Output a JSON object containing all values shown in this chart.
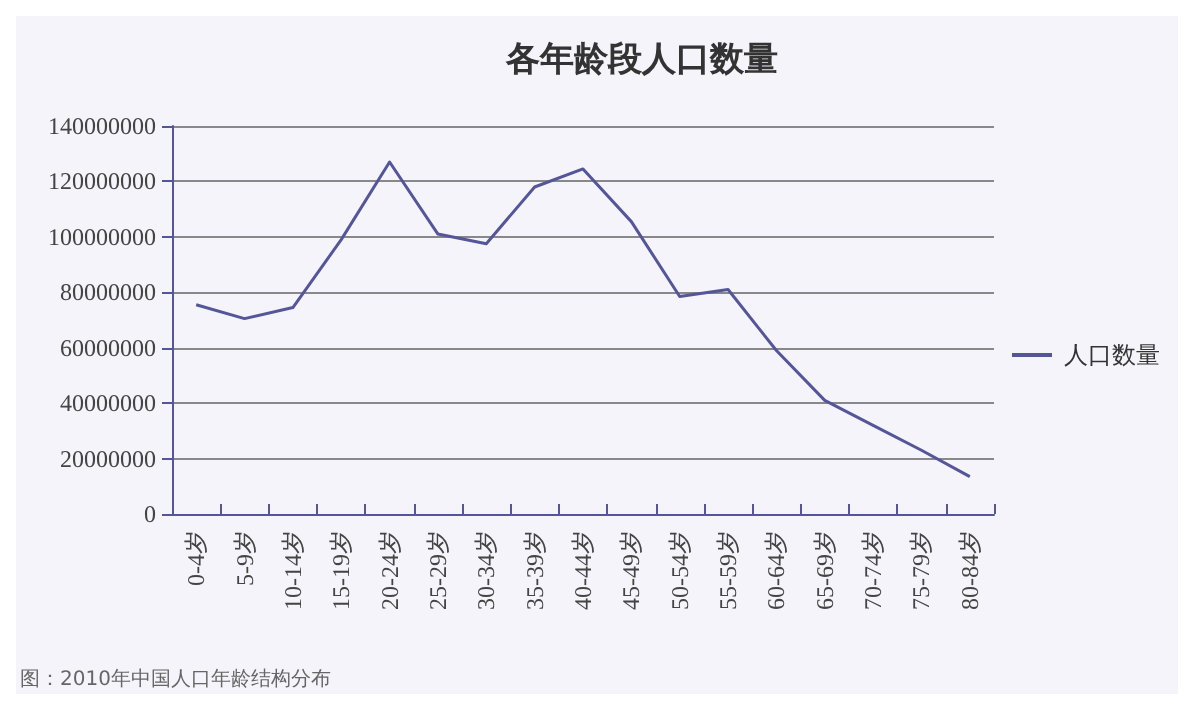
{
  "chart_data": {
    "type": "line",
    "title": "各年龄段人口数量",
    "categories": [
      "0-4岁",
      "5-9岁",
      "10-14岁",
      "15-19岁",
      "20-24岁",
      "25-29岁",
      "30-34岁",
      "35-39岁",
      "40-44岁",
      "45-49岁",
      "50-54岁",
      "55-59岁",
      "60-64岁",
      "65-69岁",
      "70-74岁",
      "75-79岁",
      "80-84岁"
    ],
    "series": [
      {
        "name": "人口数量",
        "color": "#55559a",
        "values": [
          75500000,
          70500000,
          74500000,
          99000000,
          127000000,
          101000000,
          97500000,
          118000000,
          124500000,
          105500000,
          78500000,
          81000000,
          59000000,
          41000000,
          32000000,
          23000000,
          13500000
        ]
      }
    ],
    "ylim": [
      0,
      140000000
    ],
    "yticks": [
      0,
      20000000,
      40000000,
      60000000,
      80000000,
      100000000,
      120000000,
      140000000
    ],
    "grid": "y",
    "legend": "right",
    "marker": "none",
    "annotations": [
      "图：2010年中国人口年龄结构分布"
    ]
  }
}
